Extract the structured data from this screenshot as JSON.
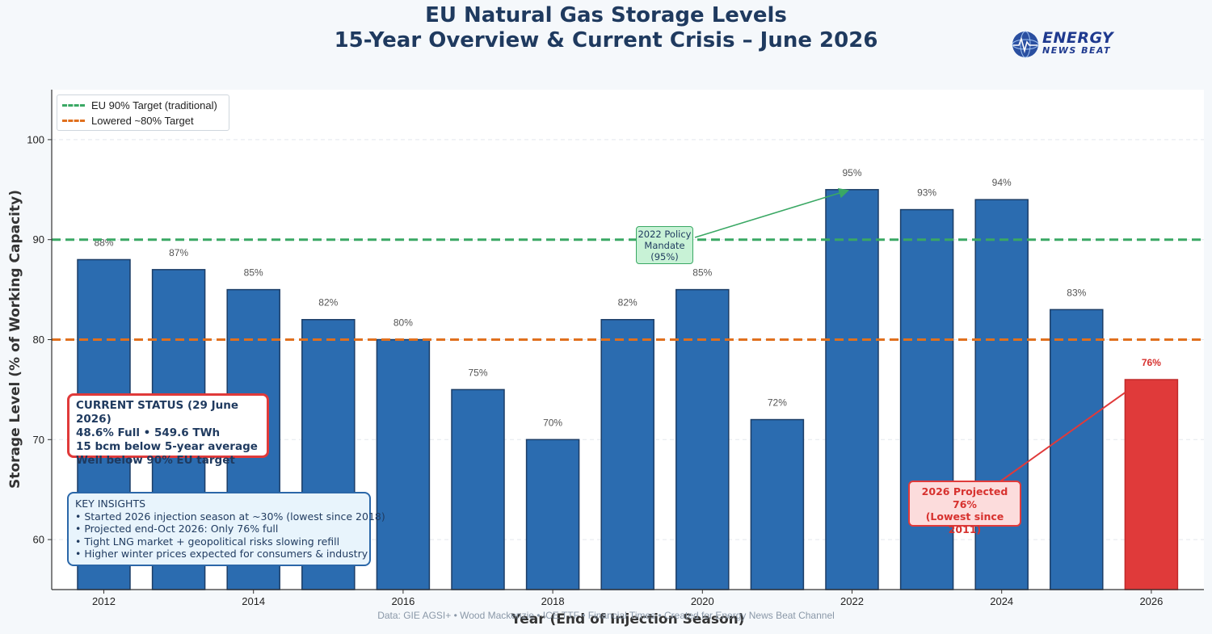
{
  "title": {
    "line1": "EU Natural Gas Storage Levels",
    "line2": "15-Year Overview & Current Crisis – June 2026"
  },
  "logo": {
    "line1": "ENERGY",
    "line2": "NEWS BEAT"
  },
  "legend": {
    "eu_target": "EU 90% Target (traditional)",
    "lowered_target": "Lowered ~80% Target"
  },
  "annotations": {
    "current_status": [
      "CURRENT STATUS (29 June 2026)",
      "48.6% Full  •  549.6 TWh",
      "15 bcm below 5-year average",
      "Well below 90% EU target"
    ],
    "key_insights": [
      "KEY INSIGHTS",
      "• Started 2026 injection season at ~30% (lowest since 2018)",
      "• Projected end-Oct 2026: Only 76% full",
      "• Tight LNG market + geopolitical risks slowing refill",
      "• Higher winter prices expected for consumers & industry"
    ],
    "projection": [
      "2026 Projected",
      "76%",
      "(Lowest since 2011)"
    ],
    "policy": [
      "2022 Policy",
      "Mandate",
      "(95%)"
    ]
  },
  "footer": "Data: GIE AGSI+  •  Wood Mackenzie  •  ICE TTF  •  Financial Times  •  Created for Energy News Beat Channel",
  "colors": {
    "bar": "#2b6cb0",
    "bar_highlight": "#e03a3a",
    "target_90": "#3aa864",
    "target_80": "#e0701e"
  },
  "chart_data": {
    "type": "bar",
    "categories": [
      "2012",
      "2013",
      "2014",
      "2015",
      "2016",
      "2017",
      "2018",
      "2019",
      "2020",
      "2021",
      "2022",
      "2023",
      "2024",
      "2025",
      "2026"
    ],
    "values": [
      88,
      87,
      85,
      82,
      80,
      75,
      70,
      82,
      85,
      72,
      95,
      93,
      94,
      83,
      76
    ],
    "data_labels": [
      "88%",
      "87%",
      "85%",
      "82%",
      "80%",
      "75%",
      "70%",
      "82%",
      "85%",
      "72%",
      "95%",
      "93%",
      "94%",
      "83%",
      "76%"
    ],
    "highlight_category": "2026",
    "xtick_labels": [
      "2012",
      "2014",
      "2016",
      "2018",
      "2020",
      "2022",
      "2024",
      "2026"
    ],
    "yticks": [
      60,
      70,
      80,
      90,
      100
    ],
    "ylim": [
      55,
      105
    ],
    "xlabel": "Year (End of Injection Season)",
    "ylabel": "Storage Level (% of Working Capacity)",
    "reference_lines": [
      {
        "name": "EU 90% Target (traditional)",
        "value": 90
      },
      {
        "name": "Lowered ~80% Target",
        "value": 80
      }
    ],
    "grid": "horizontal dashed",
    "legend_position": "top-left"
  }
}
